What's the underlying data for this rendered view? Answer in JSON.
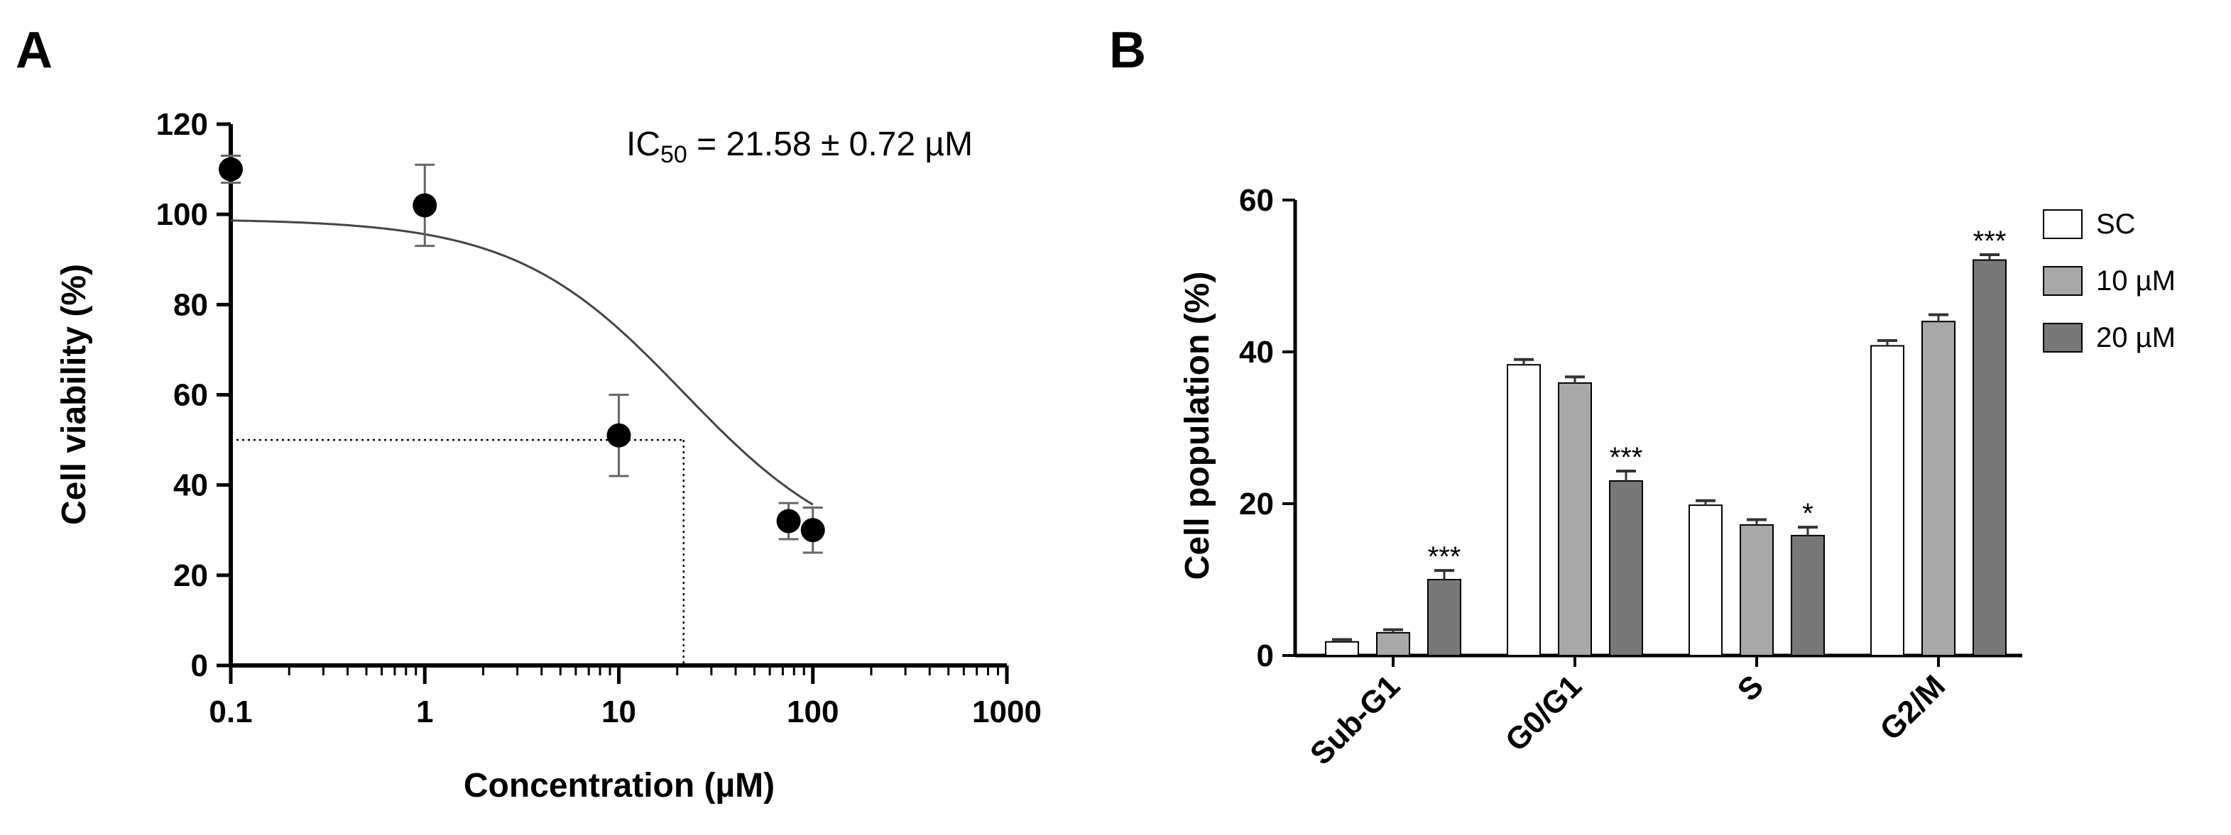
{
  "panels": {
    "a_letter": "A",
    "b_letter": "B"
  },
  "chart_data": [
    {
      "type": "scatter",
      "panel": "A",
      "xlabel": "Concentration (µM)",
      "ylabel": "Cell viability (%)",
      "x_scale": "log",
      "xlim": [
        0.1,
        1000
      ],
      "ylim": [
        0,
        120
      ],
      "x_ticks": [
        0.1,
        1,
        10,
        100,
        1000
      ],
      "x_tick_labels": [
        "0.1",
        "1",
        "10",
        "100",
        "1000"
      ],
      "y_ticks": [
        0,
        20,
        40,
        60,
        80,
        100,
        120
      ],
      "y_tick_labels": [
        "0",
        "20",
        "40",
        "60",
        "80",
        "100",
        "120"
      ],
      "annotation": {
        "prefix": "IC",
        "subscript": "50",
        "suffix": " = 21.58 ± 0.72 µM"
      },
      "points": [
        {
          "x": 0.1,
          "y": 110,
          "err": 3
        },
        {
          "x": 1,
          "y": 102,
          "err": 9
        },
        {
          "x": 10,
          "y": 51,
          "err": 9
        },
        {
          "x": 75,
          "y": 32,
          "err": 4
        },
        {
          "x": 100,
          "y": 30,
          "err": 5
        }
      ],
      "fit_curve": {
        "model": "sigmoid",
        "top": 99,
        "bottom": 22,
        "ic50": 21.58,
        "hill": 1.0
      },
      "reference_lines": {
        "y": 50,
        "x": 21.58,
        "style": "dotted"
      },
      "colors": {
        "points": "#000000",
        "curve": "#444444",
        "error_bars": "#666666"
      }
    },
    {
      "type": "bar",
      "panel": "B",
      "ylabel": "Cell population (%)",
      "xlabel": "",
      "ylim": [
        0,
        60
      ],
      "y_ticks": [
        0,
        20,
        40,
        60
      ],
      "y_tick_labels": [
        "0",
        "20",
        "40",
        "60"
      ],
      "categories": [
        "Sub-G1",
        "G0/G1",
        "S",
        "G2/M"
      ],
      "series": [
        {
          "name": "SC",
          "values": [
            1.8,
            38.3,
            19.8,
            40.8
          ],
          "errors": [
            0.3,
            0.7,
            0.6,
            0.7
          ],
          "color": "#ffffff"
        },
        {
          "name": "10 µM",
          "values": [
            3.0,
            35.9,
            17.2,
            44.0
          ],
          "errors": [
            0.4,
            0.8,
            0.7,
            0.9
          ],
          "color": "#a8a8a8"
        },
        {
          "name": "20 µM",
          "values": [
            10.0,
            23.0,
            15.8,
            52.1
          ],
          "errors": [
            1.2,
            1.3,
            1.1,
            0.7
          ],
          "color": "#787878"
        }
      ],
      "significance": [
        {
          "category": "Sub-G1",
          "series": "20 µM",
          "label": "***"
        },
        {
          "category": "G0/G1",
          "series": "20 µM",
          "label": "***"
        },
        {
          "category": "S",
          "series": "20 µM",
          "label": "*"
        },
        {
          "category": "G2/M",
          "series": "20 µM",
          "label": "***"
        }
      ],
      "legend": {
        "position": "top-right"
      }
    }
  ]
}
